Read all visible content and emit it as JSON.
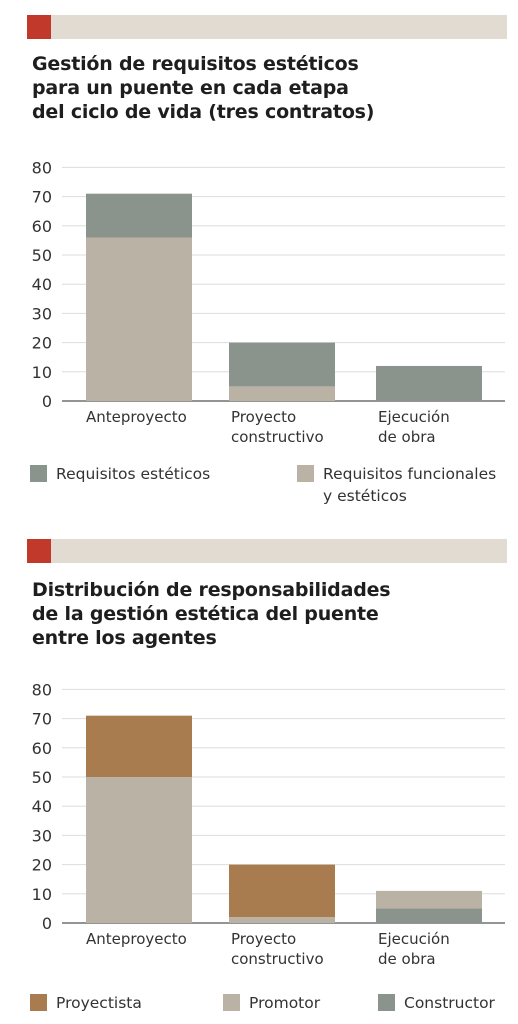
{
  "colors": {
    "accent": "#c0392b",
    "header_band": "#e2dbd2",
    "gray_green": "#8a948c",
    "beige": "#b9b2a5",
    "brown": "#a97c4f",
    "axis": "#555555",
    "grid": "#dddddd"
  },
  "chart_data": [
    {
      "type": "bar",
      "stacked": true,
      "title": "Gestión de requisitos estéticos\npara un puente en cada etapa\ndel ciclo de vida  (tres contratos)",
      "categories": [
        "Anteproyecto",
        "Proyecto\nconstructivo",
        "Ejecución\nde obra"
      ],
      "series": [
        {
          "name": "Requisitos funcionales\ny estéticos",
          "color": "#b9b2a5",
          "values": [
            56,
            5,
            0
          ]
        },
        {
          "name": "Requisitos estéticos",
          "color": "#8a948c",
          "values": [
            15,
            15,
            12
          ]
        }
      ],
      "legend_order": [
        1,
        0
      ],
      "ylim": [
        0,
        80
      ],
      "yticks": [
        0,
        10,
        20,
        30,
        40,
        50,
        60,
        70,
        80
      ],
      "xlabel": "",
      "ylabel": "",
      "grid": true,
      "legend_position": "bottom"
    },
    {
      "type": "bar",
      "stacked": true,
      "title": "Distribución de responsabilidades\nde la gestión estética del puente\nentre los agentes",
      "categories": [
        "Anteproyecto",
        "Proyecto\nconstructivo",
        "Ejecución\nde obra"
      ],
      "series": [
        {
          "name": "Constructor",
          "color": "#8a948c",
          "values": [
            0,
            0,
            5
          ]
        },
        {
          "name": "Promotor",
          "color": "#b9b2a5",
          "values": [
            50,
            2,
            6
          ]
        },
        {
          "name": "Proyectista",
          "color": "#a97c4f",
          "values": [
            21,
            18,
            0
          ]
        }
      ],
      "legend_order": [
        2,
        1,
        0
      ],
      "ylim": [
        0,
        80
      ],
      "yticks": [
        0,
        10,
        20,
        30,
        40,
        50,
        60,
        70,
        80
      ],
      "xlabel": "",
      "ylabel": "",
      "grid": true,
      "legend_position": "bottom"
    }
  ]
}
